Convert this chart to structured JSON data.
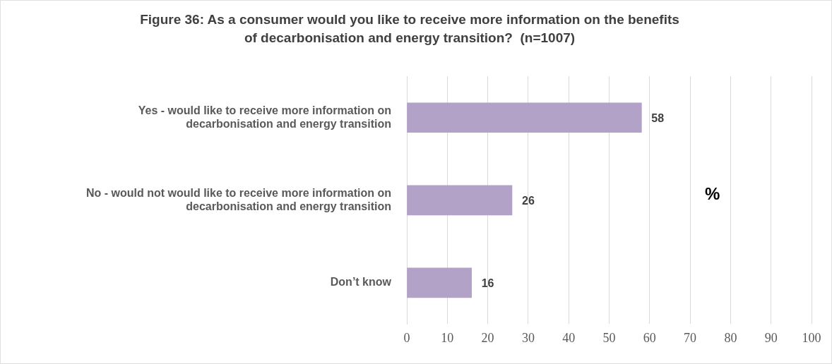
{
  "chart_data": {
    "type": "bar",
    "orientation": "horizontal",
    "title": "Figure 36: As a consumer would you like to receive more information on the benefits of decarbonisation and energy transition?  (n=1007)",
    "categories": [
      "Yes - would like to receive more information on decarbonisation and energy transition",
      "No - would not would like to receive more information on decarbonisation and energy transition",
      "Don’t know"
    ],
    "values": [
      58,
      26,
      16
    ],
    "color": "#b3a2c7",
    "xlabel": "%",
    "xlim": [
      0,
      100
    ],
    "xticks": [
      0,
      10,
      20,
      30,
      40,
      50,
      60,
      70,
      80,
      90,
      100
    ],
    "grid": "x",
    "data_labels": true,
    "legend": false
  }
}
